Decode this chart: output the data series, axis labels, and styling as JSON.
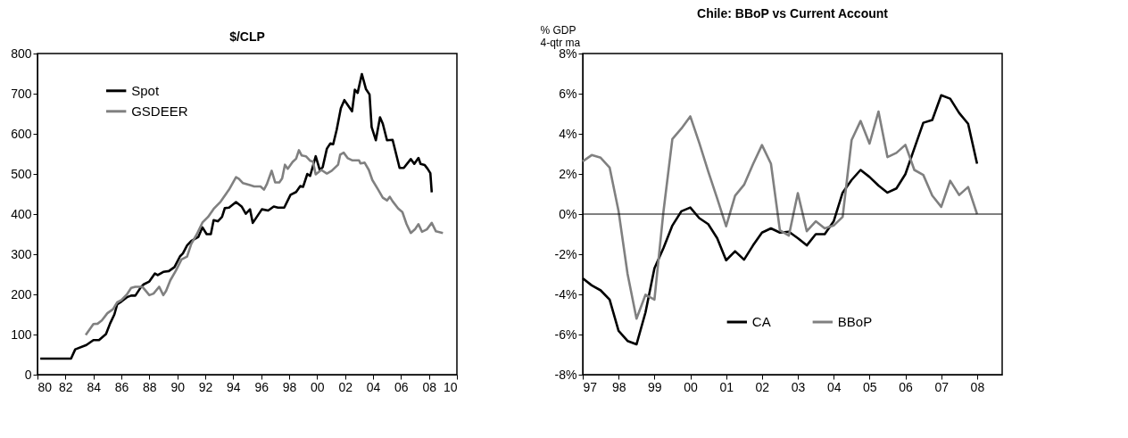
{
  "chart_data": [
    {
      "type": "line",
      "title": "$/CLP",
      "xlim": [
        1980,
        2010
      ],
      "xticks": [
        {
          "value": 1980,
          "label": "80"
        },
        {
          "value": 1982,
          "label": "82"
        },
        {
          "value": 1984,
          "label": "84"
        },
        {
          "value": 1986,
          "label": "86"
        },
        {
          "value": 1988,
          "label": "88"
        },
        {
          "value": 1990,
          "label": "90"
        },
        {
          "value": 1992,
          "label": "92"
        },
        {
          "value": 1994,
          "label": "94"
        },
        {
          "value": 1996,
          "label": "96"
        },
        {
          "value": 1998,
          "label": "98"
        },
        {
          "value": 2000,
          "label": "00"
        },
        {
          "value": 2002,
          "label": "02"
        },
        {
          "value": 2004,
          "label": "04"
        },
        {
          "value": 2006,
          "label": "06"
        },
        {
          "value": 2008,
          "label": "08"
        },
        {
          "value": 2010,
          "label": "10"
        }
      ],
      "ylim": [
        0,
        800
      ],
      "yticks": [
        0,
        100,
        200,
        300,
        400,
        500,
        600,
        700,
        800
      ],
      "grid": false,
      "legend": "top left",
      "series": [
        {
          "name": "Spot",
          "color": "#000000",
          "x": [
            1980.2,
            1982.4,
            1982.7,
            1983.5,
            1984.0,
            1984.4,
            1984.9,
            1985.2,
            1985.5,
            1985.7,
            1986.0,
            1986.4,
            1986.7,
            1987.0,
            1987.4,
            1987.6,
            1988.0,
            1988.4,
            1988.6,
            1989.0,
            1989.4,
            1989.8,
            1990.2,
            1990.4,
            1990.7,
            1991.0,
            1991.5,
            1991.8,
            1992.1,
            1992.4,
            1992.6,
            1992.9,
            1993.2,
            1993.4,
            1993.7,
            1994.2,
            1994.6,
            1994.9,
            1995.2,
            1995.4,
            1996.05,
            1996.5,
            1996.9,
            1997.2,
            1997.65,
            1998.1,
            1998.5,
            1998.8,
            1999.0,
            1999.3,
            1999.5,
            1999.9,
            2000.2,
            2000.4,
            2000.7,
            2000.95,
            2001.15,
            2001.4,
            2001.7,
            2001.95,
            2002.5,
            2002.7,
            2002.9,
            2003.2,
            2003.5,
            2003.75,
            2003.9,
            2004.2,
            2004.5,
            2004.7,
            2005.0,
            2005.4,
            2005.9,
            2006.2,
            2006.7,
            2006.95,
            2007.25,
            2007.4,
            2007.7,
            2007.9,
            2008.1,
            2008.2
          ],
          "values": [
            40,
            40,
            63,
            74,
            86,
            86,
            101,
            128,
            150,
            175,
            182,
            193,
            197,
            197,
            218,
            225,
            232,
            252,
            248,
            256,
            258,
            268,
            295,
            302,
            322,
            333,
            343,
            367,
            350,
            350,
            385,
            382,
            393,
            415,
            416,
            430,
            419,
            401,
            412,
            378,
            412,
            409,
            419,
            416,
            416,
            448,
            455,
            470,
            468,
            500,
            495,
            544,
            509,
            517,
            563,
            576,
            574,
            610,
            664,
            684,
            656,
            710,
            702,
            749,
            711,
            698,
            617,
            584,
            641,
            625,
            584,
            585,
            515,
            515,
            537,
            525,
            540,
            525,
            522,
            513,
            502,
            454
          ]
        },
        {
          "name": "GSDEER",
          "color": "#808080",
          "x": [
            1983.45,
            1984.0,
            1984.3,
            1984.6,
            1985.0,
            1985.4,
            1985.7,
            1986.0,
            1986.4,
            1986.7,
            1987.0,
            1987.5,
            1988.0,
            1988.3,
            1988.7,
            1989.0,
            1989.2,
            1989.5,
            1989.9,
            1990.3,
            1990.7,
            1991.0,
            1991.4,
            1991.8,
            1992.2,
            1992.6,
            1993.1,
            1993.7,
            1994.2,
            1994.4,
            1994.7,
            1995.2,
            1995.5,
            1995.95,
            1996.2,
            1996.4,
            1996.75,
            1997.0,
            1997.3,
            1997.5,
            1997.7,
            1997.9,
            1998.25,
            1998.5,
            1998.7,
            1998.9,
            1999.2,
            1999.5,
            1999.7,
            1999.9,
            2000.3,
            2000.7,
            2001.05,
            2001.5,
            2001.65,
            2001.9,
            2002.2,
            2002.5,
            2003.0,
            2003.1,
            2003.4,
            2003.7,
            2003.95,
            2004.35,
            2004.7,
            2005.0,
            2005.2,
            2005.4,
            2005.8,
            2006.1,
            2006.4,
            2006.7,
            2007.0,
            2007.25,
            2007.5,
            2007.85,
            2008.2,
            2008.5,
            2009.0
          ],
          "values": [
            99,
            126,
            127,
            135,
            153,
            163,
            180,
            186,
            200,
            216,
            219,
            219,
            198,
            202,
            219,
            198,
            209,
            235,
            259,
            287,
            294,
            326,
            350,
            379,
            393,
            413,
            431,
            461,
            492,
            488,
            477,
            472,
            469,
            469,
            461,
            474,
            508,
            479,
            479,
            489,
            523,
            513,
            530,
            538,
            559,
            546,
            544,
            533,
            531,
            499,
            510,
            501,
            508,
            523,
            548,
            553,
            539,
            534,
            534,
            526,
            528,
            510,
            485,
            462,
            441,
            434,
            443,
            432,
            414,
            405,
            375,
            353,
            362,
            375,
            356,
            362,
            378,
            357,
            353
          ]
        }
      ]
    },
    {
      "type": "line",
      "title": "Chile: BBoP vs Current Account",
      "ylabel": "% GDP\n4-qtr ma",
      "xlim": [
        1997,
        2008.7
      ],
      "xticks": [
        {
          "value": 1997,
          "label": "97"
        },
        {
          "value": 1998,
          "label": "98"
        },
        {
          "value": 1999,
          "label": "99"
        },
        {
          "value": 2000,
          "label": "00"
        },
        {
          "value": 2001,
          "label": "01"
        },
        {
          "value": 2002,
          "label": "02"
        },
        {
          "value": 2003,
          "label": "03"
        },
        {
          "value": 2004,
          "label": "04"
        },
        {
          "value": 2005,
          "label": "05"
        },
        {
          "value": 2006,
          "label": "06"
        },
        {
          "value": 2007,
          "label": "07"
        },
        {
          "value": 2008,
          "label": "08"
        }
      ],
      "ylim": [
        -8,
        8
      ],
      "yticks": [
        {
          "value": -8,
          "label": "-8%"
        },
        {
          "value": -6,
          "label": "-6%"
        },
        {
          "value": -4,
          "label": "-4%"
        },
        {
          "value": -2,
          "label": "-2%"
        },
        {
          "value": 0,
          "label": "0%"
        },
        {
          "value": 2,
          "label": "2%"
        },
        {
          "value": 4,
          "label": "4%"
        },
        {
          "value": 6,
          "label": "6%"
        },
        {
          "value": 8,
          "label": "8%"
        }
      ],
      "grid": false,
      "legend": "bottom",
      "ref_lines": [
        {
          "axis": "y",
          "value": 0,
          "color": "#000000"
        }
      ],
      "x": [
        1997.0,
        1997.25,
        1997.5,
        1997.75,
        1998.0,
        1998.25,
        1998.5,
        1998.75,
        1999.0,
        1999.25,
        1999.5,
        1999.75,
        2000.0,
        2000.25,
        2000.5,
        2000.75,
        2001.0,
        2001.25,
        2001.5,
        2001.75,
        2002.0,
        2002.25,
        2002.5,
        2002.75,
        2003.0,
        2003.25,
        2003.5,
        2003.75,
        2004.0,
        2004.25,
        2004.5,
        2004.75,
        2005.0,
        2005.25,
        2005.5,
        2005.75,
        2006.0,
        2006.25,
        2006.5,
        2006.75,
        2007.0,
        2007.25,
        2007.5,
        2007.75,
        2008.0
      ],
      "series": [
        {
          "name": "CA",
          "color": "#000000",
          "values": [
            -3.2,
            -3.55,
            -3.8,
            -4.26,
            -5.82,
            -6.32,
            -6.49,
            -4.9,
            -2.7,
            -1.7,
            -0.57,
            0.14,
            0.33,
            -0.2,
            -0.5,
            -1.2,
            -2.3,
            -1.85,
            -2.27,
            -1.56,
            -0.92,
            -0.71,
            -0.92,
            -0.88,
            -1.2,
            -1.56,
            -1.0,
            -1.0,
            -0.36,
            1.07,
            1.7,
            2.2,
            1.85,
            1.42,
            1.07,
            1.28,
            1.99,
            3.27,
            4.55,
            4.69,
            5.92,
            5.75,
            5.04,
            4.5,
            2.51
          ]
        },
        {
          "name": "BBoP",
          "color": "#808080",
          "values": [
            2.63,
            2.94,
            2.81,
            2.32,
            0.14,
            -2.98,
            -5.21,
            -4.02,
            -4.26,
            0.1,
            3.74,
            4.26,
            4.87,
            3.55,
            2.13,
            0.78,
            -0.61,
            0.92,
            1.46,
            2.49,
            3.44,
            2.51,
            -0.81,
            -1.07,
            1.04,
            -0.85,
            -0.36,
            -0.71,
            -0.57,
            -0.14,
            3.69,
            4.64,
            3.51,
            5.11,
            2.84,
            3.05,
            3.45,
            2.2,
            1.95,
            0.92,
            0.36,
            1.66,
            0.95,
            1.35,
            0.0
          ]
        }
      ]
    }
  ]
}
